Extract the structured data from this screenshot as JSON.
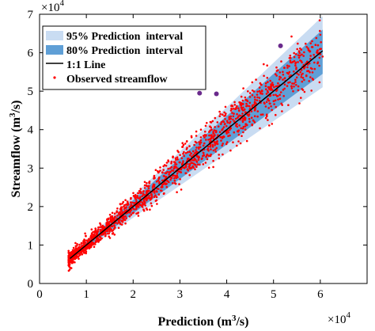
{
  "chart_data": {
    "type": "scatter",
    "title": "",
    "xlabel": "Prediction",
    "ylabel": "Streamflow",
    "unit": "(m",
    "unit_sup": "3",
    "unit_tail": "/s)",
    "x_multiplier": "×10",
    "x_multiplier_exp": "4",
    "y_multiplier": "×10",
    "y_multiplier_exp": "4",
    "xlim": [
      0,
      7
    ],
    "ylim": [
      0,
      7
    ],
    "xticks": [
      0,
      1,
      2,
      3,
      4,
      5,
      6
    ],
    "yticks": [
      0,
      1,
      2,
      3,
      4,
      5,
      6,
      7
    ],
    "xtick_labels": [
      "0",
      "1",
      "2",
      "3",
      "4",
      "5",
      "6"
    ],
    "ytick_labels": [
      "0",
      "1",
      "2",
      "3",
      "4",
      "5",
      "6",
      "7"
    ],
    "grid": false,
    "legend_position": "top-left",
    "legend": [
      {
        "label": "95% Prediction  interval",
        "kind": "band95"
      },
      {
        "label": "80% Prediction  interval",
        "kind": "band80"
      },
      {
        "label": "1:1 Line",
        "kind": "line"
      },
      {
        "label": "Observed streamflow",
        "kind": "dot"
      }
    ],
    "colors": {
      "band95": "#c9dcf2",
      "band80": "#5f9fd6",
      "line": "#000000",
      "points": "#ff0000",
      "outliers": "#6a2a8c"
    },
    "one_to_one": {
      "x": [
        0.65,
        6.05
      ],
      "y": [
        0.65,
        6.05
      ]
    },
    "band95": {
      "x": [
        0.65,
        6.05
      ],
      "lower": [
        0.58,
        5.1
      ],
      "upper": [
        0.72,
        6.95
      ]
    },
    "band80": {
      "x": [
        0.65,
        6.05
      ],
      "lower": [
        0.61,
        5.45
      ],
      "upper": [
        0.69,
        6.6
      ]
    },
    "outliers": [
      {
        "x": 3.42,
        "y": 4.95
      },
      {
        "x": 3.78,
        "y": 4.93
      },
      {
        "x": 5.15,
        "y": 6.18
      }
    ],
    "observed_points_description": "Dense cloud of roughly 2000 observed points clustered around the 1:1 line for predictions between 0.6 and 6.0 (x10^4 m3/s)",
    "observed_sample": [
      [
        0.65,
        0.62
      ],
      [
        0.68,
        0.4
      ],
      [
        0.72,
        0.75
      ],
      [
        0.75,
        0.55
      ],
      [
        0.8,
        0.78
      ],
      [
        0.85,
        0.95
      ],
      [
        0.9,
        0.8
      ],
      [
        0.95,
        1.05
      ],
      [
        1.0,
        0.9
      ],
      [
        1.05,
        1.15
      ],
      [
        1.1,
        0.95
      ],
      [
        1.15,
        1.25
      ],
      [
        1.2,
        1.1
      ],
      [
        1.25,
        1.35
      ],
      [
        1.3,
        1.2
      ],
      [
        1.35,
        1.5
      ],
      [
        1.4,
        1.3
      ],
      [
        1.45,
        1.6
      ],
      [
        1.5,
        1.45
      ],
      [
        1.55,
        1.75
      ],
      [
        1.6,
        1.5
      ],
      [
        1.65,
        1.85
      ],
      [
        1.7,
        1.6
      ],
      [
        1.75,
        1.95
      ],
      [
        1.8,
        1.75
      ],
      [
        1.85,
        2.05
      ],
      [
        1.9,
        1.85
      ],
      [
        1.95,
        2.2
      ],
      [
        2.0,
        1.95
      ],
      [
        2.05,
        2.3
      ],
      [
        2.1,
        2.0
      ],
      [
        2.15,
        2.4
      ],
      [
        2.2,
        2.1
      ],
      [
        2.25,
        2.55
      ],
      [
        2.3,
        2.2
      ],
      [
        2.35,
        2.65
      ],
      [
        2.4,
        2.3
      ],
      [
        2.45,
        2.8
      ],
      [
        2.5,
        2.4
      ],
      [
        2.55,
        2.9
      ],
      [
        2.6,
        2.5
      ],
      [
        2.65,
        3.05
      ],
      [
        2.7,
        2.6
      ],
      [
        2.75,
        3.2
      ],
      [
        2.8,
        2.7
      ],
      [
        2.85,
        3.3
      ],
      [
        2.9,
        2.8
      ],
      [
        2.95,
        3.45
      ],
      [
        3.0,
        2.9
      ],
      [
        3.05,
        3.55
      ],
      [
        3.1,
        3.0
      ],
      [
        3.15,
        3.7
      ],
      [
        3.2,
        3.1
      ],
      [
        3.25,
        3.8
      ],
      [
        3.3,
        3.2
      ],
      [
        3.35,
        3.95
      ],
      [
        3.4,
        3.3
      ],
      [
        3.45,
        4.0
      ],
      [
        3.5,
        3.4
      ],
      [
        3.55,
        4.1
      ],
      [
        3.6,
        3.5
      ],
      [
        3.65,
        4.2
      ],
      [
        3.7,
        3.6
      ],
      [
        3.75,
        4.3
      ],
      [
        3.8,
        3.7
      ],
      [
        3.85,
        4.35
      ],
      [
        3.9,
        3.8
      ],
      [
        3.95,
        4.45
      ],
      [
        4.0,
        3.9
      ],
      [
        4.1,
        4.55
      ],
      [
        4.2,
        4.1
      ],
      [
        4.3,
        4.7
      ],
      [
        4.4,
        4.3
      ],
      [
        4.5,
        4.85
      ],
      [
        4.6,
        4.5
      ],
      [
        4.7,
        5.0
      ],
      [
        4.8,
        4.7
      ],
      [
        4.9,
        5.1
      ],
      [
        5.0,
        4.9
      ],
      [
        5.2,
        5.3
      ],
      [
        5.4,
        5.2
      ],
      [
        5.6,
        5.55
      ],
      [
        5.8,
        5.6
      ],
      [
        5.95,
        5.75
      ],
      [
        6.05,
        5.9
      ]
    ]
  }
}
